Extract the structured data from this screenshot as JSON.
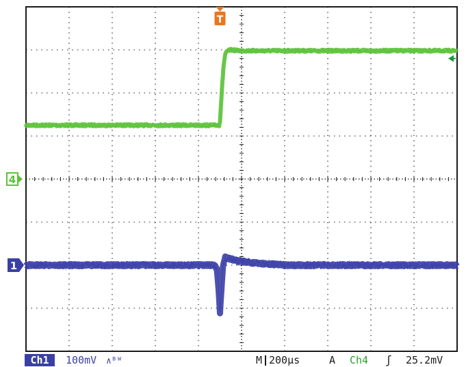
{
  "chart_data": {
    "type": "line",
    "title": "",
    "xlabel": "",
    "ylabel": "",
    "grid": true,
    "divisions": {
      "x": 10,
      "y": 8
    },
    "xlim": [
      0,
      10
    ],
    "ylim": [
      -4,
      4
    ],
    "x_units": "div",
    "y_units": "div",
    "series": [
      {
        "channel": "4",
        "color": "#5cc23a",
        "marker_label": "4",
        "ground_level": 0,
        "x": [
          0,
          4.48,
          4.5,
          4.54,
          4.58,
          4.62,
          4.68,
          4.75,
          4.85,
          5,
          10
        ],
        "y": [
          1.25,
          1.25,
          1.35,
          2.0,
          2.6,
          2.9,
          2.98,
          3.0,
          2.99,
          2.98,
          2.98
        ]
      },
      {
        "channel": "1",
        "color": "#3a3fa6",
        "marker_label": "1",
        "ground_level": -2,
        "x": [
          0,
          4.38,
          4.43,
          4.47,
          4.5,
          4.53,
          4.57,
          4.62,
          4.72,
          4.9,
          5.3,
          6,
          10
        ],
        "y": [
          -2,
          -2,
          -2.1,
          -2.6,
          -3.1,
          -2.6,
          -2.0,
          -1.82,
          -1.85,
          -1.9,
          -1.95,
          -2,
          -2
        ]
      }
    ],
    "trigger": {
      "position": 4.5,
      "label": "T",
      "color": "#e8771e"
    },
    "trigger_level_marker": {
      "y": 2.8,
      "color": "#1a9a3a"
    }
  },
  "status_bar": {
    "ch1_label": "Ch1",
    "ch1_scale": "100mV",
    "ch1_bw": "∧ᴮᵂ",
    "timebase_prefix": "M",
    "timebase": "200µs",
    "trigger_mode": "A",
    "trigger_source": "Ch4",
    "trigger_slope": "ʃ",
    "trigger_level": "25.2mV"
  }
}
